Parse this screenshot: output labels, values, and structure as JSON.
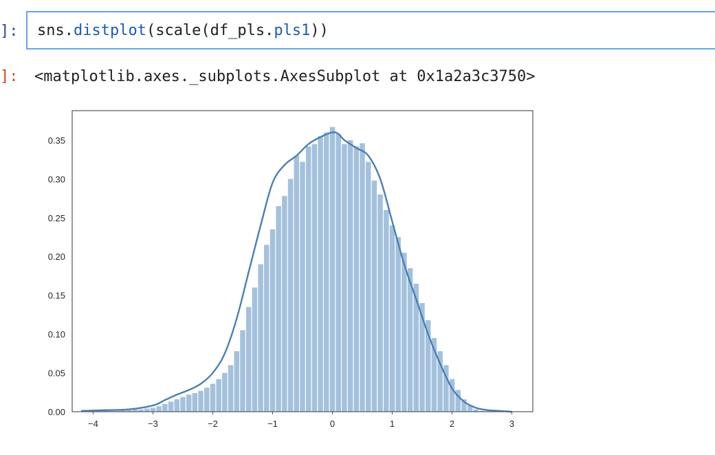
{
  "cell": {
    "in_prompt": "]:",
    "out_prompt": "]:",
    "code": {
      "prefix": "sns.",
      "fn": "distplot",
      "middle": "(scale(df_pls.",
      "attr": "pls1",
      "suffix": "))"
    },
    "output_repr": "<matplotlib.axes._subplots.AxesSubplot at 0x1a2a3c3750>"
  },
  "chart_data": {
    "type": "bar",
    "title": "",
    "xlabel": "",
    "ylabel": "",
    "xlim": [
      -4.35,
      3.35
    ],
    "ylim": [
      0,
      0.388
    ],
    "xticks": [
      -4,
      -3,
      -2,
      -1,
      0,
      1,
      2,
      3
    ],
    "xtick_labels": [
      "−4",
      "−3",
      "−2",
      "−1",
      "0",
      "1",
      "2",
      "3"
    ],
    "yticks": [
      0.0,
      0.05,
      0.1,
      0.15,
      0.2,
      0.25,
      0.3,
      0.35
    ],
    "ytick_labels": [
      "0.00",
      "0.05",
      "0.10",
      "0.15",
      "0.20",
      "0.25",
      "0.30",
      "0.35"
    ],
    "grid": false,
    "colors": {
      "bar": "#a4c1dc",
      "kde": "#4a7fb5",
      "frame": "#555555"
    },
    "hist_bins": {
      "edges_start": -4.15,
      "bin_width": 0.1,
      "values": [
        0.001,
        0.001,
        0.001,
        0.001,
        0.001,
        0.001,
        0.002,
        0.002,
        0.003,
        0.003,
        0.004,
        0.005,
        0.007,
        0.01,
        0.013,
        0.016,
        0.019,
        0.022,
        0.024,
        0.027,
        0.031,
        0.036,
        0.042,
        0.05,
        0.06,
        0.078,
        0.105,
        0.135,
        0.16,
        0.19,
        0.215,
        0.235,
        0.265,
        0.278,
        0.3,
        0.33,
        0.322,
        0.342,
        0.345,
        0.355,
        0.36,
        0.367,
        0.358,
        0.345,
        0.35,
        0.342,
        0.346,
        0.322,
        0.298,
        0.28,
        0.26,
        0.24,
        0.225,
        0.205,
        0.185,
        0.165,
        0.14,
        0.118,
        0.095,
        0.078,
        0.06,
        0.042,
        0.028,
        0.016,
        0.008,
        0.003,
        0.001,
        0.001
      ]
    },
    "series": [
      {
        "kind": "kde",
        "x": [
          -4.2,
          -3.8,
          -3.4,
          -3.0,
          -2.8,
          -2.6,
          -2.4,
          -2.2,
          -2.0,
          -1.8,
          -1.6,
          -1.4,
          -1.2,
          -1.0,
          -0.8,
          -0.6,
          -0.4,
          -0.2,
          0.0,
          0.1,
          0.2,
          0.4,
          0.6,
          0.8,
          1.0,
          1.2,
          1.4,
          1.6,
          1.8,
          2.0,
          2.2,
          2.4,
          2.6,
          2.8,
          3.0
        ],
        "y": [
          0.001,
          0.002,
          0.003,
          0.008,
          0.015,
          0.022,
          0.028,
          0.036,
          0.05,
          0.075,
          0.12,
          0.18,
          0.24,
          0.295,
          0.318,
          0.33,
          0.345,
          0.354,
          0.36,
          0.358,
          0.35,
          0.34,
          0.33,
          0.3,
          0.245,
          0.19,
          0.145,
          0.1,
          0.062,
          0.03,
          0.013,
          0.005,
          0.002,
          0.001,
          0.0
        ]
      }
    ]
  }
}
